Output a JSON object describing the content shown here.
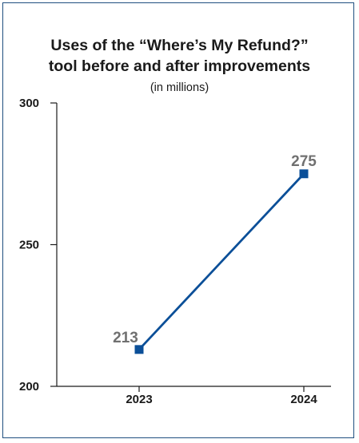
{
  "chart_data": {
    "type": "line",
    "title_lines": [
      "Uses of the “Where’s My Refund?”",
      "tool before and after improvements"
    ],
    "subtitle": "(in millions)",
    "xlabel": "",
    "ylabel": "",
    "categories": [
      "2023",
      "2024"
    ],
    "series": [
      {
        "values": [
          213,
          275
        ],
        "color": "#0b4f98"
      }
    ],
    "data_labels": [
      "213",
      "275"
    ],
    "ylim": [
      200,
      300
    ],
    "yticks": [
      200,
      250,
      300
    ],
    "ytick_labels": [
      "200",
      "250",
      "300"
    ],
    "grid": false,
    "axis_color": "#1a1a1a",
    "label_color": "#707070"
  }
}
